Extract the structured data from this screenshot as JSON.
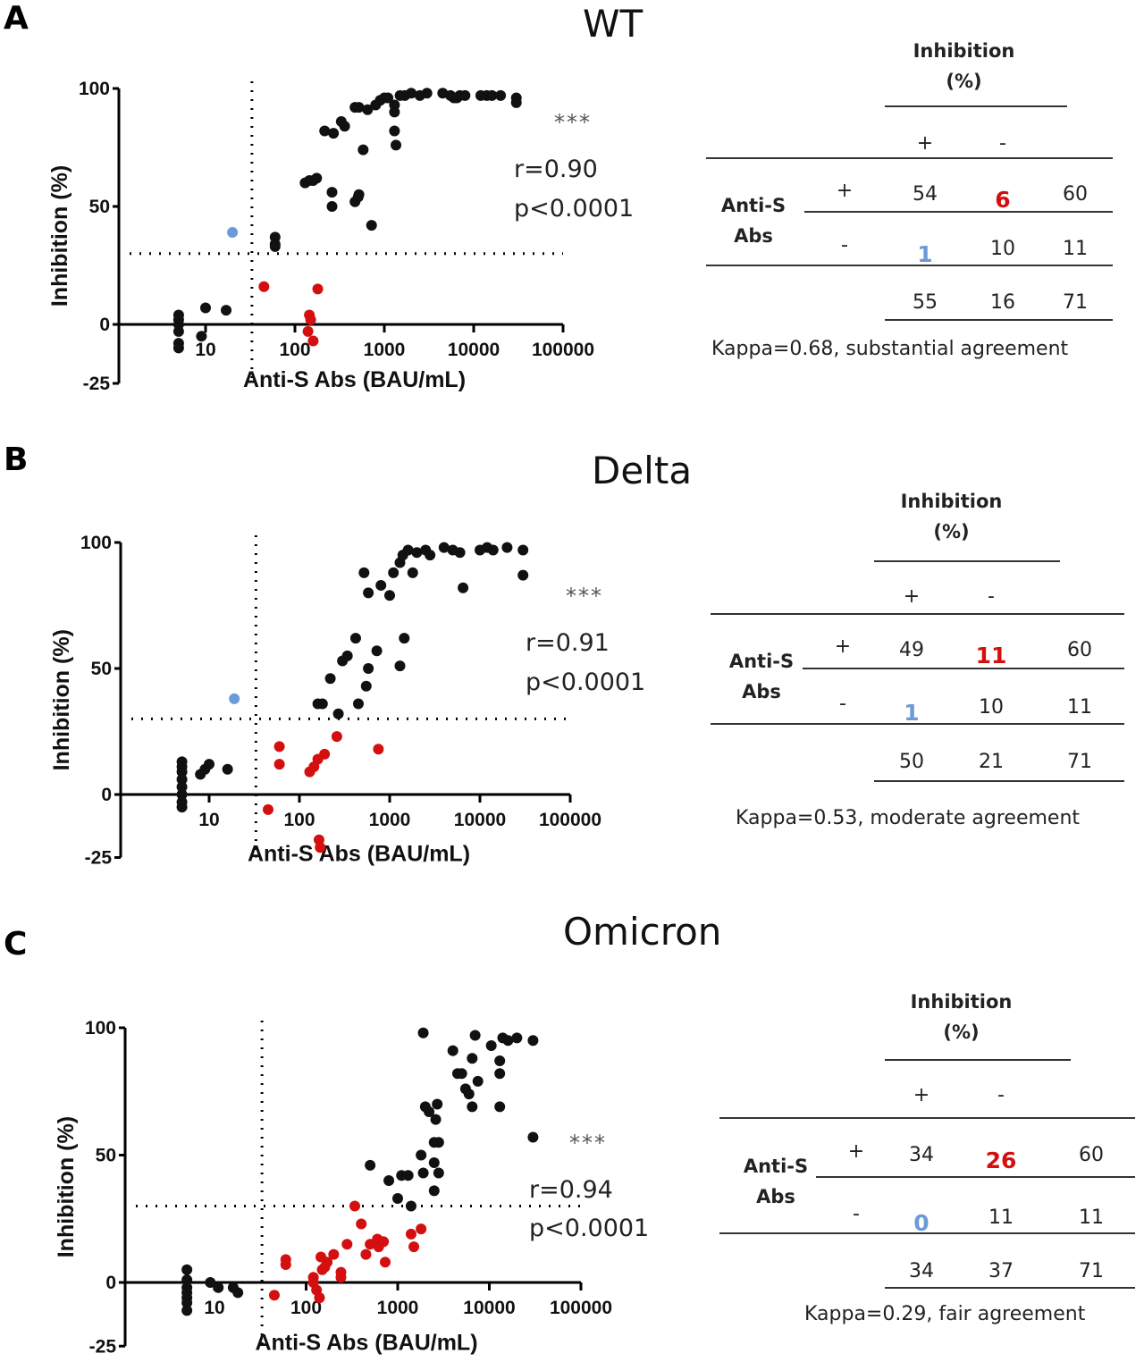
{
  "colors": {
    "black": "#111111",
    "red": "#d40f0f",
    "blue": "#6a9ad8"
  },
  "chart_data": [
    {
      "panel": "A",
      "title": "WT",
      "type": "scatter",
      "xlabel": "Anti-S Abs (BAU/mL)",
      "ylabel": "Inhibition (%)",
      "xscale": "log",
      "xticks": [
        "10",
        "100",
        "1000",
        "10000",
        "100000"
      ],
      "yticks": [
        "100",
        "50",
        "0",
        "-25"
      ],
      "ylim": [
        -25,
        100
      ],
      "xlim": [
        1,
        100000
      ],
      "cutoff_x": 33,
      "cutoff_y": 30,
      "annotation": {
        "stars": "***",
        "r": "r=0.90",
        "p": "p<0.0001"
      },
      "series": [
        {
          "name": "concordant",
          "color": "black",
          "points": [
            [
              5,
              4
            ],
            [
              5,
              2
            ],
            [
              5,
              0
            ],
            [
              5,
              -3
            ],
            [
              5,
              -8
            ],
            [
              5,
              -10
            ],
            [
              10,
              7
            ],
            [
              9,
              -5
            ],
            [
              17,
              6
            ],
            [
              60,
              37
            ],
            [
              60,
              34
            ],
            [
              60,
              33
            ],
            [
              130,
              60
            ],
            [
              145,
              61
            ],
            [
              160,
              61
            ],
            [
              175,
              62
            ],
            [
              215,
              82
            ],
            [
              270,
              81
            ],
            [
              330,
              86
            ],
            [
              360,
              84
            ],
            [
              260,
              56
            ],
            [
              260,
              50
            ],
            [
              470,
              52
            ],
            [
              510,
              54
            ],
            [
              520,
              55
            ],
            [
              580,
              74
            ],
            [
              720,
              42
            ],
            [
              470,
              92
            ],
            [
              520,
              92
            ],
            [
              650,
              91
            ],
            [
              800,
              93
            ],
            [
              900,
              95
            ],
            [
              1000,
              96
            ],
            [
              1100,
              96
            ],
            [
              1300,
              93
            ],
            [
              1300,
              90
            ],
            [
              1300,
              82
            ],
            [
              1350,
              76
            ],
            [
              1500,
              97
            ],
            [
              1700,
              97
            ],
            [
              2000,
              98
            ],
            [
              2500,
              97
            ],
            [
              3000,
              98
            ],
            [
              4500,
              98
            ],
            [
              5500,
              97
            ],
            [
              6000,
              96
            ],
            [
              6500,
              96
            ],
            [
              7000,
              97
            ],
            [
              8000,
              97
            ],
            [
              12000,
              97
            ],
            [
              14000,
              97
            ],
            [
              16000,
              97
            ],
            [
              20000,
              97
            ],
            [
              30000,
              96
            ],
            [
              30000,
              94
            ]
          ]
        },
        {
          "name": "ELISA+ / inhibition-",
          "color": "red",
          "points": [
            [
              45,
              16
            ],
            [
              180,
              15
            ],
            [
              145,
              4
            ],
            [
              150,
              2
            ],
            [
              140,
              -3
            ],
            [
              160,
              -7
            ]
          ]
        },
        {
          "name": "ELISA- / inhibition+",
          "color": "blue",
          "points": [
            [
              20,
              39
            ]
          ]
        }
      ]
    },
    {
      "panel": "B",
      "title": "Delta",
      "type": "scatter",
      "xlabel": "Anti-S Abs (BAU/mL)",
      "ylabel": "Inhibition (%)",
      "xscale": "log",
      "xticks": [
        "10",
        "100",
        "1000",
        "10000",
        "100000"
      ],
      "yticks": [
        "100",
        "50",
        "0",
        "-25"
      ],
      "ylim": [
        -25,
        100
      ],
      "xlim": [
        1,
        100000
      ],
      "cutoff_x": 33,
      "cutoff_y": 30,
      "annotation": {
        "stars": "***",
        "r": "r=0.91",
        "p": "p<0.0001"
      },
      "series": [
        {
          "name": "concordant",
          "color": "black",
          "points": [
            [
              5,
              13
            ],
            [
              5,
              11
            ],
            [
              5,
              9
            ],
            [
              5,
              6
            ],
            [
              5,
              3
            ],
            [
              5,
              0
            ],
            [
              5,
              -3
            ],
            [
              5,
              -5
            ],
            [
              8,
              8
            ],
            [
              9,
              10
            ],
            [
              10,
              12
            ],
            [
              16,
              10
            ],
            [
              160,
              36
            ],
            [
              180,
              36
            ],
            [
              220,
              46
            ],
            [
              270,
              32
            ],
            [
              300,
              53
            ],
            [
              340,
              55
            ],
            [
              420,
              62
            ],
            [
              450,
              36
            ],
            [
              550,
              43
            ],
            [
              580,
              50
            ],
            [
              720,
              57
            ],
            [
              1300,
              51
            ],
            [
              1450,
              62
            ],
            [
              520,
              88
            ],
            [
              580,
              80
            ],
            [
              800,
              83
            ],
            [
              1000,
              79
            ],
            [
              1100,
              88
            ],
            [
              1300,
              92
            ],
            [
              1400,
              95
            ],
            [
              1600,
              97
            ],
            [
              1800,
              88
            ],
            [
              2000,
              96
            ],
            [
              2500,
              97
            ],
            [
              2800,
              95
            ],
            [
              4000,
              98
            ],
            [
              5000,
              97
            ],
            [
              6000,
              96
            ],
            [
              6500,
              82
            ],
            [
              10000,
              97
            ],
            [
              12000,
              98
            ],
            [
              14000,
              97
            ],
            [
              20000,
              98
            ],
            [
              30000,
              97
            ],
            [
              30000,
              87
            ]
          ]
        },
        {
          "name": "ELISA+ / inhibition-",
          "color": "red",
          "points": [
            [
              45,
              -6
            ],
            [
              60,
              19
            ],
            [
              60,
              12
            ],
            [
              130,
              9
            ],
            [
              145,
              11
            ],
            [
              160,
              14
            ],
            [
              190,
              16
            ],
            [
              260,
              23
            ],
            [
              750,
              18
            ],
            [
              165,
              -18
            ],
            [
              170,
              -21
            ]
          ]
        },
        {
          "name": "ELISA- / inhibition+",
          "color": "blue",
          "points": [
            [
              19,
              38
            ]
          ]
        }
      ]
    },
    {
      "panel": "C",
      "title": "Omicron",
      "type": "scatter",
      "xlabel": "Anti-S Abs (BAU/mL)",
      "ylabel": "Inhibition (%)",
      "xscale": "log",
      "xticks": [
        "10",
        "100",
        "1000",
        "10000",
        "100000"
      ],
      "yticks": [
        "100",
        "50",
        "0",
        "-25"
      ],
      "ylim": [
        -25,
        100
      ],
      "xlim": [
        1,
        100000
      ],
      "cutoff_x": 33,
      "cutoff_y": 30,
      "annotation": {
        "stars": "***",
        "r": "r=0.94",
        "p": "p<0.0001"
      },
      "series": [
        {
          "name": "concordant",
          "color": "black",
          "points": [
            [
              5,
              5
            ],
            [
              5,
              1
            ],
            [
              5,
              -2
            ],
            [
              5,
              -4
            ],
            [
              5,
              -6
            ],
            [
              5,
              -8
            ],
            [
              5,
              -11
            ],
            [
              9,
              0
            ],
            [
              11,
              -2
            ],
            [
              16,
              -2
            ],
            [
              18,
              -4
            ],
            [
              500,
              46
            ],
            [
              800,
              40
            ],
            [
              1000,
              33
            ],
            [
              1100,
              42
            ],
            [
              1300,
              42
            ],
            [
              1400,
              30
            ],
            [
              1800,
              50
            ],
            [
              1900,
              43
            ],
            [
              2000,
              69
            ],
            [
              2200,
              67
            ],
            [
              2500,
              36
            ],
            [
              2500,
              47
            ],
            [
              2500,
              55
            ],
            [
              2600,
              64
            ],
            [
              2700,
              70
            ],
            [
              2800,
              55
            ],
            [
              2800,
              43
            ],
            [
              1900,
              98
            ],
            [
              4000,
              91
            ],
            [
              4500,
              82
            ],
            [
              5000,
              82
            ],
            [
              5500,
              76
            ],
            [
              6000,
              74
            ],
            [
              6500,
              88
            ],
            [
              6500,
              69
            ],
            [
              7000,
              97
            ],
            [
              7500,
              79
            ],
            [
              10500,
              93
            ],
            [
              13000,
              87
            ],
            [
              13000,
              82
            ],
            [
              13000,
              69
            ],
            [
              14000,
              96
            ],
            [
              16000,
              95
            ],
            [
              20000,
              96
            ],
            [
              30000,
              95
            ],
            [
              30000,
              57
            ]
          ]
        },
        {
          "name": "ELISA+ / inhibition-",
          "color": "red",
          "points": [
            [
              45,
              -5
            ],
            [
              60,
              9
            ],
            [
              60,
              7
            ],
            [
              120,
              0
            ],
            [
              120,
              2
            ],
            [
              130,
              -3
            ],
            [
              140,
              -6
            ],
            [
              145,
              10
            ],
            [
              150,
              5
            ],
            [
              160,
              6
            ],
            [
              170,
              8
            ],
            [
              200,
              11
            ],
            [
              240,
              4
            ],
            [
              240,
              2
            ],
            [
              280,
              15
            ],
            [
              340,
              30
            ],
            [
              400,
              23
            ],
            [
              450,
              11
            ],
            [
              500,
              15
            ],
            [
              600,
              17
            ],
            [
              620,
              14
            ],
            [
              700,
              16
            ],
            [
              730,
              8
            ],
            [
              1400,
              19
            ],
            [
              1500,
              14
            ],
            [
              1800,
              21
            ]
          ]
        },
        {
          "name": "ELISA- / inhibition+",
          "color": "blue",
          "points": []
        }
      ]
    }
  ],
  "tables": [
    {
      "header": [
        "Inhibition",
        "(%)"
      ],
      "col_signs": [
        "+",
        "-"
      ],
      "row_label": [
        "Anti-S",
        "Abs"
      ],
      "rows": [
        {
          "sign": "+",
          "cells": [
            "54",
            "6",
            "60"
          ]
        },
        {
          "sign": "-",
          "cells": [
            "1",
            "10",
            "11"
          ]
        }
      ],
      "totals": [
        "55",
        "16",
        "71"
      ],
      "kappa": "Kappa=0.68, substantial agreement"
    },
    {
      "header": [
        "Inhibition",
        "(%)"
      ],
      "col_signs": [
        "+",
        "-"
      ],
      "row_label": [
        "Anti-S",
        "Abs"
      ],
      "rows": [
        {
          "sign": "+",
          "cells": [
            "49",
            "11",
            "60"
          ]
        },
        {
          "sign": "-",
          "cells": [
            "1",
            "10",
            "11"
          ]
        }
      ],
      "totals": [
        "50",
        "21",
        "71"
      ],
      "kappa": "Kappa=0.53, moderate  agreement"
    },
    {
      "header": [
        "Inhibition",
        "(%)"
      ],
      "col_signs": [
        "+",
        "-"
      ],
      "row_label": [
        "Anti-S",
        "Abs"
      ],
      "rows": [
        {
          "sign": "+",
          "cells": [
            "34",
            "26",
            "60"
          ]
        },
        {
          "sign": "-",
          "cells": [
            "0",
            "11",
            "11"
          ]
        }
      ],
      "totals": [
        "34",
        "37",
        "71"
      ],
      "kappa": "Kappa=0.29, fair agreement"
    }
  ]
}
